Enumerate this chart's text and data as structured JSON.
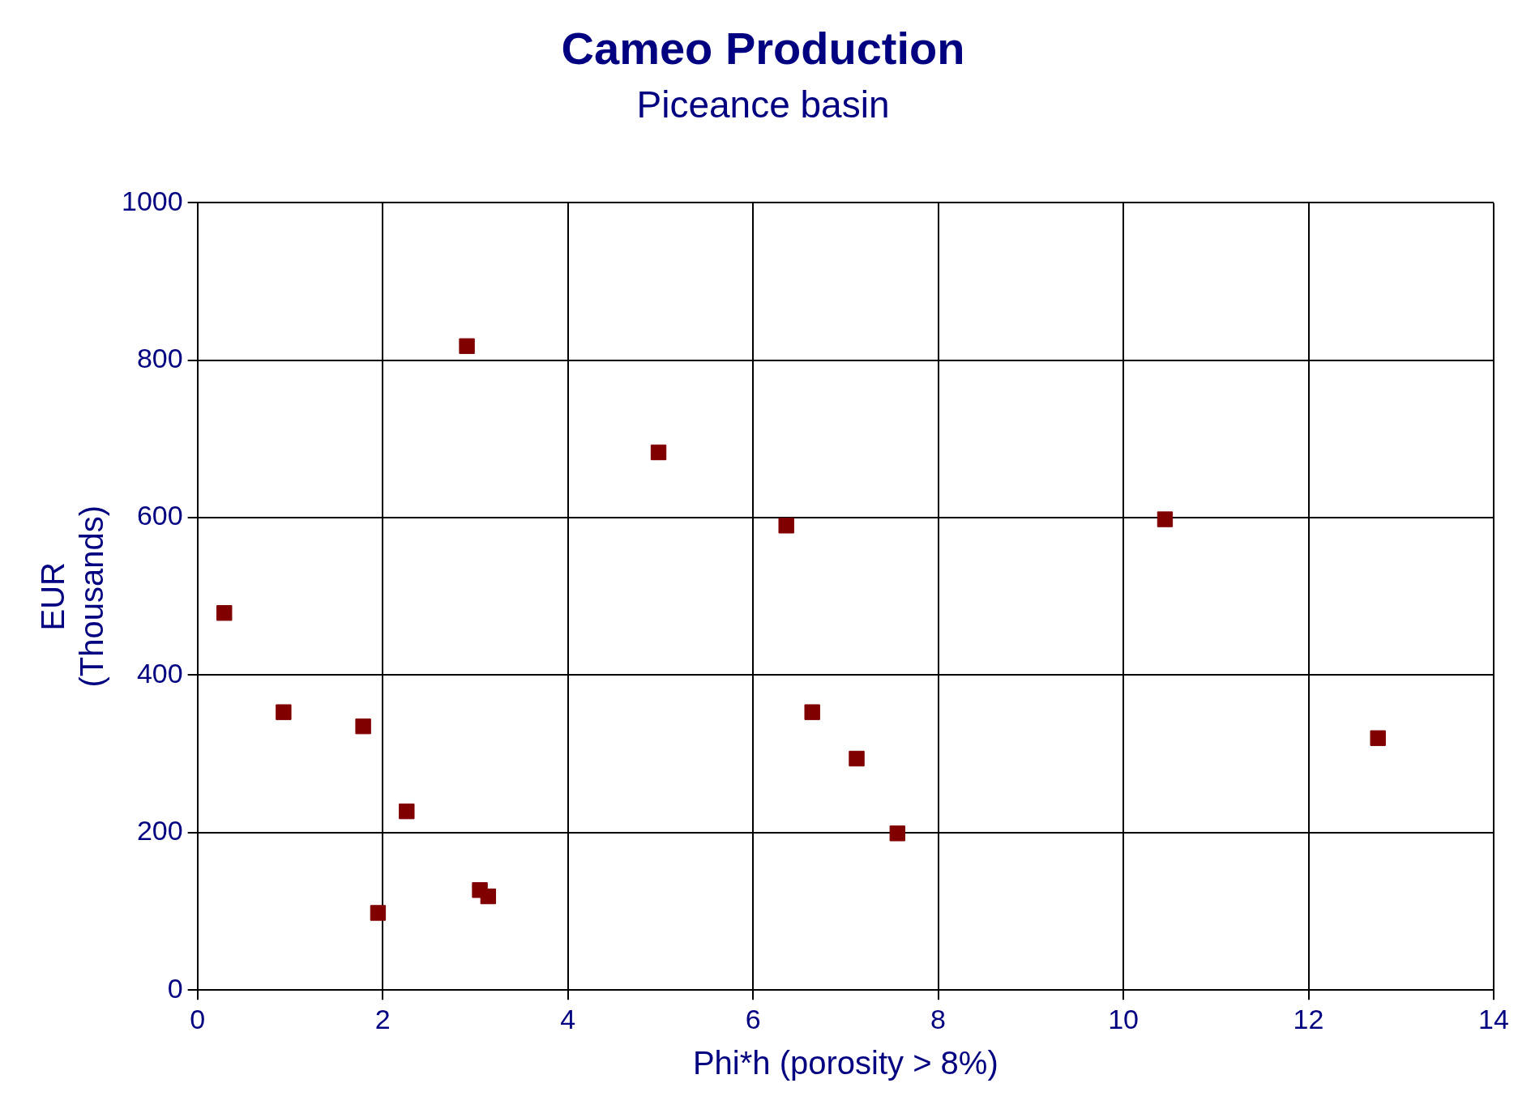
{
  "chart_data": {
    "type": "scatter",
    "title": "Cameo Production",
    "subtitle": "Piceance basin",
    "xlabel": "Phi*h (porosity > 8%)",
    "ylabel": "EUR\n(Thousands)",
    "x": [
      0.29,
      0.93,
      1.79,
      2.26,
      1.95,
      2.91,
      3.05,
      3.14,
      4.98,
      6.36,
      6.64,
      7.12,
      7.56,
      10.45,
      12.75
    ],
    "series": [
      {
        "color": "#800000",
        "values": [
          479,
          353,
          335,
          227,
          98,
          818,
          127,
          119,
          683,
          590,
          353,
          294,
          199,
          598,
          320
        ]
      }
    ],
    "xlim": [
      0,
      14
    ],
    "xticks": [
      0,
      2,
      4,
      6,
      8,
      10,
      12,
      14
    ],
    "ylim": [
      0,
      1000
    ],
    "yticks": [
      0,
      200,
      400,
      600,
      800,
      1000
    ],
    "grid": true,
    "legend": false,
    "marker": "square"
  }
}
